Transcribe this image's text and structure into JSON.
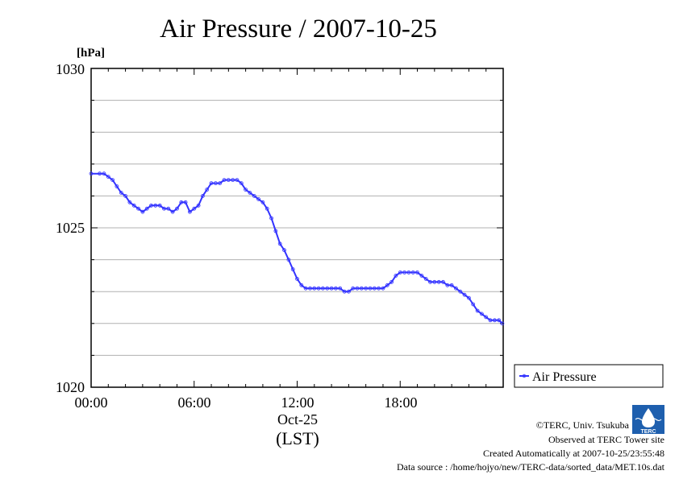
{
  "chart_data": {
    "type": "line",
    "title": "Air Pressure / 2007-10-25",
    "ylabel": "[hPa]",
    "ylim": [
      1020,
      1030
    ],
    "yticks": [
      "1020",
      "1025",
      "1030"
    ],
    "xlim_hours": [
      0,
      24
    ],
    "xticks": [
      {
        "hour": 0,
        "label": "00:00"
      },
      {
        "hour": 6,
        "label": "06:00"
      },
      {
        "hour": 12,
        "label": "12:00"
      },
      {
        "hour": 18,
        "label": "18:00"
      }
    ],
    "date_label": "Oct-25",
    "xunit": "(LST)",
    "grid": true,
    "legend": "right",
    "series": [
      {
        "name": "Air Pressure",
        "color": "#3333ff",
        "x": [
          0,
          0.5,
          0.75,
          1.0,
          1.25,
          1.5,
          1.75,
          2.0,
          2.25,
          2.5,
          2.75,
          3.0,
          3.25,
          3.5,
          3.75,
          4.0,
          4.25,
          4.5,
          4.75,
          5.0,
          5.25,
          5.5,
          5.75,
          6.0,
          6.25,
          6.5,
          6.75,
          7.0,
          7.25,
          7.5,
          7.75,
          8.0,
          8.25,
          8.5,
          8.75,
          9.0,
          9.25,
          9.5,
          9.75,
          10.0,
          10.25,
          10.5,
          10.75,
          11.0,
          11.25,
          11.5,
          11.75,
          12.0,
          12.25,
          12.5,
          12.75,
          13.0,
          13.25,
          13.5,
          13.75,
          14.0,
          14.25,
          14.5,
          14.75,
          15.0,
          15.25,
          15.5,
          15.75,
          16.0,
          16.25,
          16.5,
          16.75,
          17.0,
          17.25,
          17.5,
          17.75,
          18.0,
          18.25,
          18.5,
          18.75,
          19.0,
          19.25,
          19.5,
          19.75,
          20.0,
          20.25,
          20.5,
          20.75,
          21.0,
          21.25,
          21.5,
          21.75,
          22.0,
          22.25,
          22.5,
          22.75,
          23.0,
          23.25,
          23.5,
          23.75,
          23.95
        ],
        "values": [
          1026.7,
          1026.7,
          1026.7,
          1026.6,
          1026.5,
          1026.3,
          1026.1,
          1026.0,
          1025.8,
          1025.7,
          1025.6,
          1025.5,
          1025.6,
          1025.7,
          1025.7,
          1025.7,
          1025.6,
          1025.6,
          1025.5,
          1025.6,
          1025.8,
          1025.8,
          1025.5,
          1025.6,
          1025.7,
          1026.0,
          1026.2,
          1026.4,
          1026.4,
          1026.4,
          1026.5,
          1026.5,
          1026.5,
          1026.5,
          1026.4,
          1026.2,
          1026.1,
          1026.0,
          1025.9,
          1025.8,
          1025.6,
          1025.3,
          1024.9,
          1024.5,
          1024.3,
          1024.0,
          1023.7,
          1023.4,
          1023.2,
          1023.1,
          1023.1,
          1023.1,
          1023.1,
          1023.1,
          1023.1,
          1023.1,
          1023.1,
          1023.1,
          1023.0,
          1023.0,
          1023.1,
          1023.1,
          1023.1,
          1023.1,
          1023.1,
          1023.1,
          1023.1,
          1023.1,
          1023.2,
          1023.3,
          1023.5,
          1023.6,
          1023.6,
          1023.6,
          1023.6,
          1023.6,
          1023.5,
          1023.4,
          1023.3,
          1023.3,
          1023.3,
          1023.3,
          1023.2,
          1023.2,
          1023.1,
          1023.0,
          1022.9,
          1022.8,
          1022.6,
          1022.4,
          1022.3,
          1022.2,
          1022.1,
          1022.1,
          1022.1,
          1022.0
        ]
      }
    ]
  },
  "legend_label": "Air Pressure",
  "credits": {
    "copyright": "©TERC, Univ. Tsukuba",
    "observed": "Observed at TERC Tower site",
    "created": "Created Automatically at 2007-10-25/23:55:48",
    "source": "Data source : /home/hojyo/new/TERC-data/sorted_data/MET.10s.dat",
    "logo_text": "TERC"
  }
}
